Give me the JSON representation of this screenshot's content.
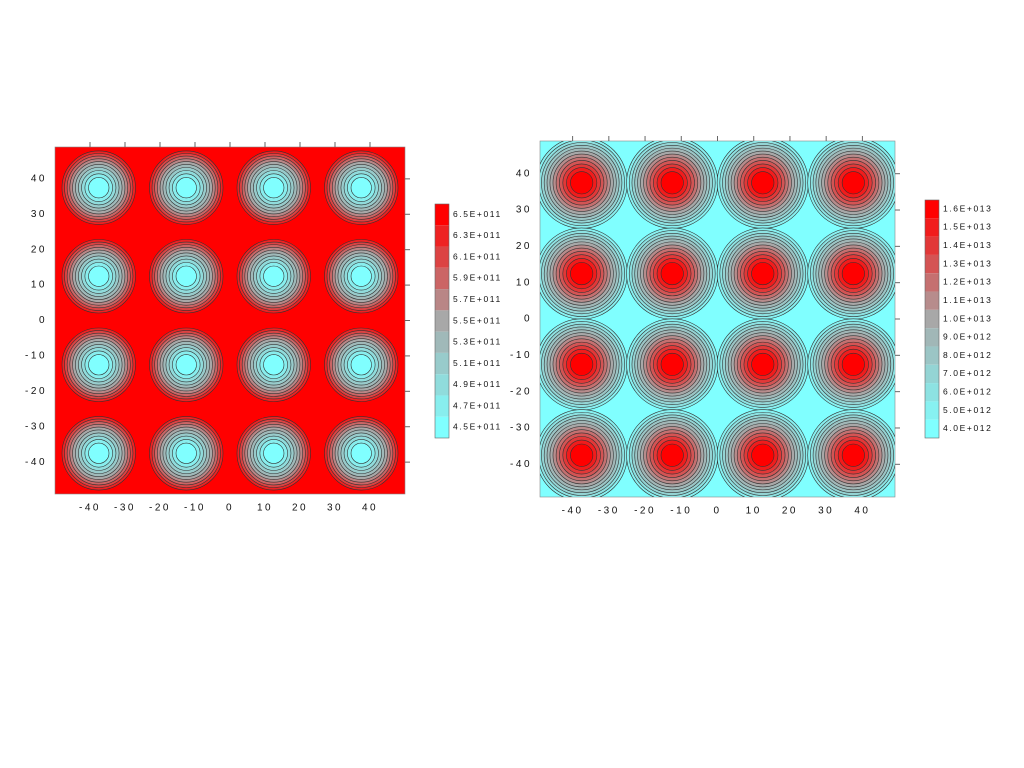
{
  "chart_data": [
    {
      "type": "contour",
      "field": "minima",
      "xlim": [
        -50,
        50
      ],
      "ylim": [
        -49,
        49
      ],
      "xticks": [
        -40,
        -30,
        -20,
        -10,
        0,
        10,
        20,
        30,
        40
      ],
      "yticks": [
        -40,
        -30,
        -20,
        -10,
        0,
        10,
        20,
        30,
        40
      ],
      "peaks_x": [
        -37.5,
        -12.5,
        12.5,
        37.5
      ],
      "peaks_y": [
        37.5,
        12.5,
        -12.5,
        -37.5
      ],
      "colormap": [
        "#ff0000",
        "#a8a8a8",
        "#80ffff"
      ],
      "colorbar": [
        {
          "value": 650000000000.0,
          "label": "6.5E+011"
        },
        {
          "value": 630000000000.0,
          "label": "6.3E+011"
        },
        {
          "value": 610000000000.0,
          "label": "6.1E+011"
        },
        {
          "value": 590000000000.0,
          "label": "5.9E+011"
        },
        {
          "value": 570000000000.0,
          "label": "5.7E+011"
        },
        {
          "value": 550000000000.0,
          "label": "5.5E+011"
        },
        {
          "value": 530000000000.0,
          "label": "5.3E+011"
        },
        {
          "value": 510000000000.0,
          "label": "5.1E+011"
        },
        {
          "value": 490000000000.0,
          "label": "4.9E+011"
        },
        {
          "value": 470000000000.0,
          "label": "4.7E+011"
        },
        {
          "value": 450000000000.0,
          "label": "4.5E+011"
        }
      ]
    },
    {
      "type": "contour",
      "field": "maxima",
      "xlim": [
        -49,
        49
      ],
      "ylim": [
        -49,
        49
      ],
      "xticks": [
        -40,
        -30,
        -20,
        -10,
        0,
        10,
        20,
        30,
        40
      ],
      "yticks": [
        -40,
        -30,
        -20,
        -10,
        0,
        10,
        20,
        30,
        40
      ],
      "peaks_x": [
        -37.5,
        -12.5,
        12.5,
        37.5
      ],
      "peaks_y": [
        37.5,
        12.5,
        -12.5,
        -37.5
      ],
      "colormap": [
        "#ff0000",
        "#a8a8a8",
        "#80ffff"
      ],
      "colorbar": [
        {
          "value": 16000000000000.0,
          "label": "1.6E+013"
        },
        {
          "value": 15000000000000.0,
          "label": "1.5E+013"
        },
        {
          "value": 14000000000000.0,
          "label": "1.4E+013"
        },
        {
          "value": 13000000000000.0,
          "label": "1.3E+013"
        },
        {
          "value": 12000000000000.0,
          "label": "1.2E+013"
        },
        {
          "value": 11000000000000.0,
          "label": "1.1E+013"
        },
        {
          "value": 10000000000000.0,
          "label": "1.0E+013"
        },
        {
          "value": 9000000000000.0,
          "label": "9.0E+012"
        },
        {
          "value": 8000000000000.0,
          "label": "8.0E+012"
        },
        {
          "value": 7000000000000.0,
          "label": "7.0E+012"
        },
        {
          "value": 6000000000000.0,
          "label": "6.0E+012"
        },
        {
          "value": 5000000000000.0,
          "label": "5.0E+012"
        },
        {
          "value": 4000000000000.0,
          "label": "4.0E+012"
        }
      ]
    }
  ]
}
